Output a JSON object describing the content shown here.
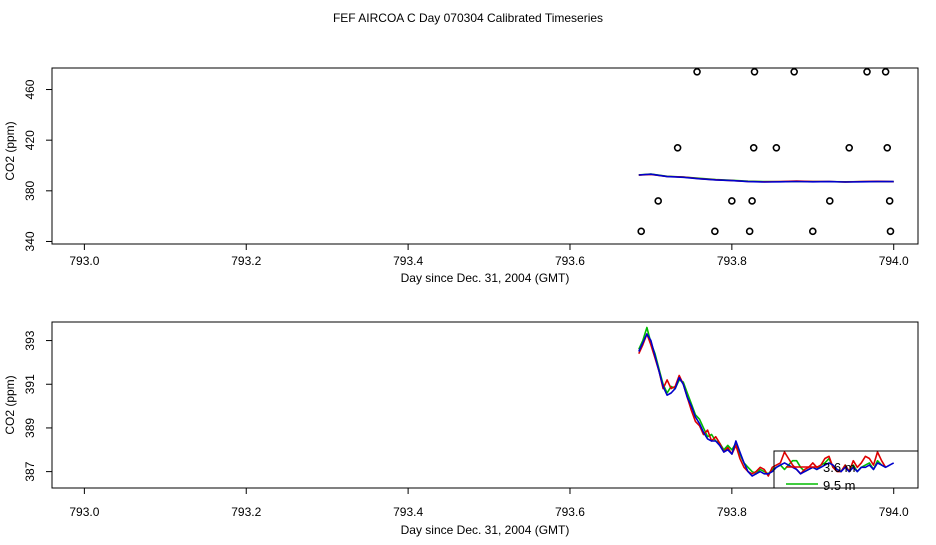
{
  "page_title": "FEF AIRCOA C  Day 070304  Calibrated Timeseries",
  "chart_data": [
    {
      "type": "scatter",
      "panel": "top",
      "xlabel": "Day since Dec. 31, 2004 (GMT)",
      "ylabel": "CO2 (ppm)",
      "xlim": [
        792.96,
        794.03
      ],
      "ylim": [
        338,
        477
      ],
      "xticks": [
        "793.0",
        "793.2",
        "793.4",
        "793.6",
        "793.8",
        "794.0"
      ],
      "xtick_values": [
        793.0,
        793.2,
        793.4,
        793.6,
        793.8,
        794.0
      ],
      "yticks": [
        "340",
        "380",
        "420",
        "460"
      ],
      "ytick_values": [
        340,
        380,
        420,
        460
      ],
      "points": [
        [
          793.688,
          348
        ],
        [
          793.709,
          372
        ],
        [
          793.733,
          414
        ],
        [
          793.757,
          474
        ],
        [
          793.779,
          348
        ],
        [
          793.8,
          372
        ],
        [
          793.822,
          348
        ],
        [
          793.825,
          372
        ],
        [
          793.827,
          414
        ],
        [
          793.828,
          474
        ],
        [
          793.855,
          414
        ],
        [
          793.877,
          474
        ],
        [
          793.9,
          348
        ],
        [
          793.921,
          372
        ],
        [
          793.945,
          414
        ],
        [
          793.967,
          474
        ],
        [
          793.99,
          474
        ],
        [
          793.992,
          414
        ],
        [
          793.995,
          372
        ],
        [
          793.996,
          348
        ]
      ],
      "series": [
        {
          "name": "green",
          "color": "#00bb00",
          "x": [
            793.685,
            793.7,
            793.72,
            793.74,
            793.76,
            793.78,
            793.8,
            793.82,
            793.84,
            793.86,
            793.88,
            793.9,
            793.92,
            793.94,
            793.96,
            793.98,
            794.0
          ],
          "y": [
            392.6,
            393.2,
            391.5,
            390.8,
            389.9,
            388.9,
            388.3,
            387.6,
            387.3,
            387.2,
            387.4,
            387.3,
            387.2,
            387.1,
            387.2,
            387.3,
            387.2
          ]
        },
        {
          "name": "red",
          "color": "#dd0000",
          "x": [
            793.685,
            793.7,
            793.72,
            793.74,
            793.76,
            793.78,
            793.8,
            793.82,
            793.84,
            793.86,
            793.88,
            793.9,
            793.92,
            793.94,
            793.96,
            793.98,
            794.0
          ],
          "y": [
            392.4,
            393.0,
            391.3,
            390.9,
            389.6,
            388.7,
            388.1,
            387.4,
            387.1,
            387.3,
            387.7,
            387.3,
            387.4,
            387.0,
            387.4,
            387.5,
            387.2
          ]
        },
        {
          "name": "blue",
          "color": "#0000cc",
          "x": [
            793.685,
            793.7,
            793.72,
            793.74,
            793.76,
            793.78,
            793.8,
            793.82,
            793.84,
            793.86,
            793.88,
            793.9,
            793.92,
            793.94,
            793.96,
            793.98,
            794.0
          ],
          "y": [
            392.5,
            393.1,
            391.2,
            390.7,
            389.5,
            388.6,
            388.1,
            387.3,
            387.0,
            387.1,
            387.4,
            387.1,
            387.3,
            387.0,
            387.1,
            387.3,
            387.3
          ]
        }
      ]
    },
    {
      "type": "line",
      "panel": "bottom",
      "xlabel": "Day since Dec. 31, 2004 (GMT)",
      "ylabel": "CO2 (ppm)",
      "xlim": [
        792.96,
        794.03
      ],
      "ylim": [
        386.25,
        393.85
      ],
      "xticks": [
        "793.0",
        "793.2",
        "793.4",
        "793.6",
        "793.8",
        "794.0"
      ],
      "xtick_values": [
        793.0,
        793.2,
        793.4,
        793.6,
        793.8,
        794.0
      ],
      "yticks": [
        "387",
        "389",
        "391",
        "393"
      ],
      "ytick_values": [
        387,
        389,
        391,
        393
      ],
      "series": [
        {
          "name": "green",
          "color": "#00bb00",
          "x": [
            793.685,
            793.69,
            793.695,
            793.7,
            793.705,
            793.71,
            793.715,
            793.72,
            793.725,
            793.73,
            793.735,
            793.74,
            793.745,
            793.75,
            793.755,
            793.76,
            793.765,
            793.77,
            793.775,
            793.78,
            793.785,
            793.79,
            793.795,
            793.8,
            793.805,
            793.81,
            793.815,
            793.82,
            793.825,
            793.83,
            793.835,
            793.84,
            793.845,
            793.85,
            793.855,
            793.86,
            793.865,
            793.87,
            793.875,
            793.88,
            793.885,
            793.89,
            793.895,
            793.9,
            793.905,
            793.91,
            793.915,
            793.92,
            793.925,
            793.93,
            793.935,
            793.94,
            793.945,
            793.95,
            793.955,
            793.96,
            793.965,
            793.97,
            793.975,
            793.98,
            793.985,
            793.99
          ],
          "y": [
            392.6,
            393.0,
            393.6,
            392.9,
            392.4,
            391.7,
            391.0,
            390.6,
            390.9,
            390.8,
            391.2,
            391.1,
            390.6,
            390.1,
            389.6,
            389.4,
            389.0,
            388.6,
            388.7,
            388.4,
            388.3,
            388.0,
            388.2,
            388.0,
            388.3,
            387.8,
            387.4,
            387.2,
            387.0,
            386.9,
            387.1,
            387.0,
            386.9,
            387.1,
            387.2,
            387.3,
            387.1,
            387.3,
            387.5,
            387.5,
            387.2,
            387.0,
            387.1,
            387.2,
            387.1,
            387.3,
            387.4,
            387.6,
            387.2,
            387.1,
            387.0,
            387.3,
            387.0,
            387.3,
            387.0,
            387.2,
            387.3,
            387.4,
            387.1,
            387.5,
            387.3,
            387.2
          ]
        },
        {
          "name": "red",
          "color": "#dd0000",
          "x": [
            793.685,
            793.69,
            793.695,
            793.7,
            793.705,
            793.71,
            793.715,
            793.72,
            793.725,
            793.73,
            793.735,
            793.74,
            793.745,
            793.75,
            793.755,
            793.76,
            793.765,
            793.77,
            793.775,
            793.78,
            793.785,
            793.79,
            793.795,
            793.8,
            793.805,
            793.81,
            793.815,
            793.82,
            793.825,
            793.83,
            793.835,
            793.84,
            793.845,
            793.85,
            793.855,
            793.86,
            793.865,
            793.87,
            793.875,
            793.88,
            793.885,
            793.89,
            793.895,
            793.9,
            793.905,
            793.91,
            793.915,
            793.92,
            793.925,
            793.93,
            793.935,
            793.94,
            793.945,
            793.95,
            793.955,
            793.96,
            793.965,
            793.97,
            793.975,
            793.98,
            793.985,
            793.99
          ],
          "y": [
            392.4,
            392.8,
            393.3,
            392.8,
            392.2,
            391.6,
            390.8,
            391.2,
            390.8,
            390.9,
            391.4,
            391.0,
            390.4,
            389.8,
            389.3,
            389.1,
            388.7,
            388.9,
            388.4,
            388.6,
            388.3,
            387.9,
            388.1,
            387.8,
            388.2,
            387.6,
            387.2,
            387.0,
            386.9,
            387.0,
            387.2,
            387.1,
            386.8,
            387.2,
            387.3,
            387.4,
            387.9,
            387.6,
            387.3,
            387.1,
            386.9,
            387.1,
            387.2,
            387.4,
            387.2,
            387.3,
            387.6,
            387.7,
            387.2,
            387.0,
            387.0,
            387.3,
            387.0,
            387.5,
            387.2,
            387.4,
            387.7,
            387.6,
            387.3,
            387.9,
            387.5,
            387.2
          ]
        },
        {
          "name": "blue",
          "color": "#0000cc",
          "x": [
            793.685,
            793.69,
            793.695,
            793.7,
            793.705,
            793.71,
            793.715,
            793.72,
            793.725,
            793.73,
            793.735,
            793.74,
            793.745,
            793.75,
            793.755,
            793.76,
            793.765,
            793.77,
            793.775,
            793.78,
            793.785,
            793.79,
            793.795,
            793.8,
            793.805,
            793.81,
            793.815,
            793.82,
            793.825,
            793.83,
            793.835,
            793.84,
            793.845,
            793.85,
            793.855,
            793.86,
            793.865,
            793.87,
            793.875,
            793.88,
            793.885,
            793.89,
            793.895,
            793.9,
            793.905,
            793.91,
            793.915,
            793.92,
            793.925,
            793.93,
            793.935,
            793.94,
            793.945,
            793.95,
            793.955,
            793.96,
            793.965,
            793.97,
            793.975,
            793.98,
            793.985,
            793.99,
            793.995,
            794.0
          ],
          "y": [
            392.5,
            392.9,
            393.3,
            393.0,
            392.3,
            391.6,
            390.9,
            390.5,
            390.6,
            390.8,
            391.3,
            391.0,
            390.4,
            390.0,
            389.5,
            389.2,
            388.8,
            388.5,
            388.4,
            388.4,
            388.2,
            387.9,
            388.0,
            387.8,
            388.4,
            387.9,
            387.4,
            387.0,
            386.8,
            386.9,
            387.0,
            386.9,
            386.9,
            387.0,
            387.2,
            387.3,
            387.4,
            387.3,
            387.2,
            387.1,
            386.9,
            387.0,
            387.1,
            387.2,
            387.1,
            387.2,
            387.3,
            387.4,
            387.3,
            387.1,
            387.0,
            387.2,
            387.0,
            387.2,
            387.0,
            387.2,
            387.2,
            387.3,
            387.1,
            387.4,
            387.3,
            387.2,
            387.3,
            387.4
          ]
        }
      ],
      "legend": {
        "entries": [
          {
            "label": "3.6 m",
            "color": "#dd0000"
          },
          {
            "label": "9.5 m",
            "color": "#00bb00"
          }
        ]
      }
    }
  ]
}
